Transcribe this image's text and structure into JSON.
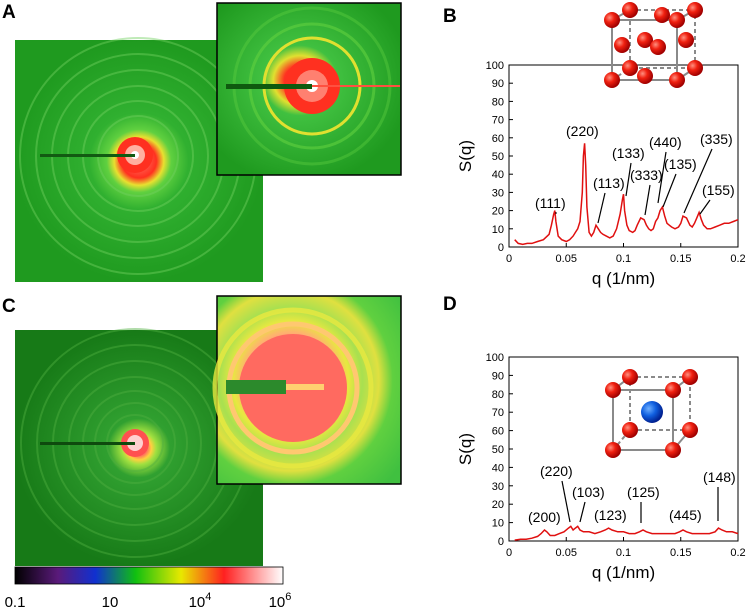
{
  "panels": {
    "a": "A",
    "b": "B",
    "c": "C",
    "d": "D"
  },
  "colorbar": {
    "ticks": [
      {
        "label": "0.1"
      },
      {
        "label": "10"
      },
      {
        "base": "10",
        "exp": "4"
      },
      {
        "base": "10",
        "exp": "6"
      }
    ],
    "colors": [
      "#000000",
      "#5a1a7a",
      "#1030d0",
      "#10c010",
      "#e8e800",
      "#ff2020",
      "#ffb0b0",
      "#ffffff"
    ]
  },
  "images": {
    "a_background": "#1f9a1f",
    "c_background": "#177a17",
    "ring_red": "#ff3b2e",
    "ring_yellow": "#e0e030",
    "ring_lightgreen": "#60d040"
  },
  "chart_data": [
    {
      "id": "B",
      "type": "line",
      "xlabel": "q (1/nm)",
      "ylabel": "S(q)",
      "xlim": [
        0,
        0.2
      ],
      "ylim": [
        0,
        100
      ],
      "xticks": [
        0,
        0.05,
        0.1,
        0.15,
        0.2
      ],
      "xtick_labels": [
        "0",
        "0.05",
        "0.1",
        "0.15",
        "0.2"
      ],
      "yticks": [
        0,
        10,
        20,
        30,
        40,
        50,
        60,
        70,
        80,
        90,
        100
      ],
      "ytick_labels": [
        "0",
        "10",
        "20",
        "30",
        "40",
        "50",
        "60",
        "70",
        "80",
        "90",
        "100"
      ],
      "series": [
        {
          "name": "S(q)",
          "color": "#e01010",
          "x": [
            0.005,
            0.008,
            0.012,
            0.016,
            0.02,
            0.025,
            0.03,
            0.035,
            0.037,
            0.039,
            0.04,
            0.041,
            0.043,
            0.046,
            0.05,
            0.053,
            0.056,
            0.058,
            0.06,
            0.062,
            0.064,
            0.065,
            0.066,
            0.067,
            0.068,
            0.07,
            0.072,
            0.074,
            0.076,
            0.078,
            0.08,
            0.082,
            0.085,
            0.088,
            0.091,
            0.094,
            0.097,
            0.099,
            0.1,
            0.101,
            0.103,
            0.105,
            0.108,
            0.11,
            0.112,
            0.115,
            0.118,
            0.12,
            0.122,
            0.124,
            0.126,
            0.128,
            0.13,
            0.132,
            0.134,
            0.136,
            0.138,
            0.14,
            0.142,
            0.145,
            0.148,
            0.15,
            0.152,
            0.155,
            0.158,
            0.16,
            0.162,
            0.164,
            0.166,
            0.168,
            0.17,
            0.173,
            0.176,
            0.18,
            0.184,
            0.188,
            0.192,
            0.196,
            0.2
          ],
          "y": [
            4,
            2,
            1.5,
            2,
            2,
            3,
            4,
            7,
            12,
            18,
            20,
            14,
            6,
            4,
            3,
            4,
            6,
            8,
            10,
            14,
            30,
            50,
            57,
            45,
            22,
            8,
            6,
            8,
            12,
            10,
            8,
            7,
            6,
            5,
            6,
            10,
            18,
            26,
            29,
            20,
            12,
            9,
            8,
            9,
            12,
            16,
            15,
            12,
            10,
            9,
            10,
            14,
            16,
            20,
            22,
            17,
            13,
            12,
            11,
            10,
            11,
            13,
            17,
            16,
            12,
            11,
            13,
            16,
            19,
            15,
            12,
            10,
            10,
            11,
            12,
            13,
            13,
            14,
            15
          ]
        }
      ],
      "annotations": [
        "(111)",
        "(220)",
        "(113)",
        "(133)",
        "(333)",
        "(440)",
        "(135)",
        "(335)",
        "(155)"
      ]
    },
    {
      "id": "D",
      "type": "line",
      "xlabel": "q (1/nm)",
      "ylabel": "S(q)",
      "xlim": [
        0,
        0.2
      ],
      "ylim": [
        0,
        100
      ],
      "xticks": [
        0,
        0.05,
        0.1,
        0.15,
        0.2
      ],
      "xtick_labels": [
        "0",
        "0.05",
        "0.1",
        "0.15",
        "0.2"
      ],
      "yticks": [
        0,
        10,
        20,
        30,
        40,
        50,
        60,
        70,
        80,
        90,
        100
      ],
      "ytick_labels": [
        "0",
        "10",
        "20",
        "30",
        "40",
        "50",
        "60",
        "70",
        "80",
        "90",
        "100"
      ],
      "series": [
        {
          "name": "S(q)",
          "color": "#e01010",
          "x": [
            0.005,
            0.01,
            0.015,
            0.02,
            0.025,
            0.028,
            0.031,
            0.033,
            0.036,
            0.04,
            0.044,
            0.048,
            0.052,
            0.054,
            0.056,
            0.058,
            0.06,
            0.062,
            0.065,
            0.07,
            0.075,
            0.08,
            0.084,
            0.087,
            0.09,
            0.095,
            0.1,
            0.105,
            0.11,
            0.114,
            0.117,
            0.12,
            0.125,
            0.13,
            0.135,
            0.14,
            0.145,
            0.149,
            0.152,
            0.155,
            0.16,
            0.165,
            0.17,
            0.175,
            0.18,
            0.183,
            0.186,
            0.19,
            0.195,
            0.2
          ],
          "y": [
            0.5,
            1,
            1,
            1.5,
            2.5,
            4,
            6,
            5,
            3,
            3,
            4,
            5,
            7,
            8,
            6,
            7,
            8,
            6,
            5,
            5,
            4,
            5,
            6,
            7,
            6,
            5,
            5,
            4,
            4,
            5,
            6,
            5,
            4,
            4,
            4,
            4,
            4,
            5,
            6,
            5,
            4,
            4,
            4,
            4,
            5,
            7,
            6,
            5,
            5,
            4
          ]
        }
      ],
      "annotations": [
        "(200)",
        "(220)",
        "(103)",
        "(123)",
        "(125)",
        "(445)",
        "(148)"
      ]
    }
  ]
}
